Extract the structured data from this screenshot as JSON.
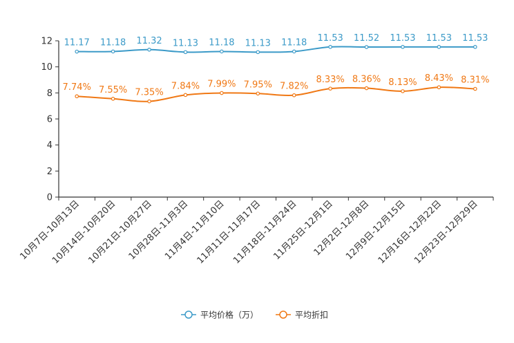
{
  "chart_data": {
    "type": "line",
    "title": "",
    "xlabel": "",
    "ylabel": "",
    "ylim": [
      0,
      12
    ],
    "yticks": [
      0,
      2,
      4,
      6,
      8,
      10,
      12
    ],
    "grid": false,
    "legend_position": "bottom-center",
    "categories": [
      "10月7日-10月13日",
      "10月14日-10月20日",
      "10月21日-10月27日",
      "10月28日-11月3日",
      "11月4日-11月10日",
      "11月11日-11月17日",
      "11月18日-11月24日",
      "11月25日-12月1日",
      "12月2日-12月8日",
      "12月9日-12月15日",
      "12月16日-12月22日",
      "12月23日-12月29日"
    ],
    "series": [
      {
        "name": "平均价格（万）",
        "color": "#3b9ac8",
        "values": [
          11.17,
          11.18,
          11.32,
          11.13,
          11.18,
          11.13,
          11.18,
          11.53,
          11.52,
          11.53,
          11.53,
          11.53
        ],
        "labels": [
          "11.17",
          "11.18",
          "11.32",
          "11.13",
          "11.18",
          "11.13",
          "11.18",
          "11.53",
          "11.52",
          "11.53",
          "11.53",
          "11.53"
        ]
      },
      {
        "name": "平均折扣",
        "color": "#f07814",
        "values": [
          7.74,
          7.55,
          7.35,
          7.84,
          7.99,
          7.95,
          7.82,
          8.33,
          8.36,
          8.13,
          8.43,
          8.31
        ],
        "labels": [
          "7.74%",
          "7.55%",
          "7.35%",
          "7.84%",
          "7.99%",
          "7.95%",
          "7.82%",
          "8.33%",
          "8.36%",
          "8.13%",
          "8.43%",
          "8.31%"
        ]
      }
    ]
  }
}
